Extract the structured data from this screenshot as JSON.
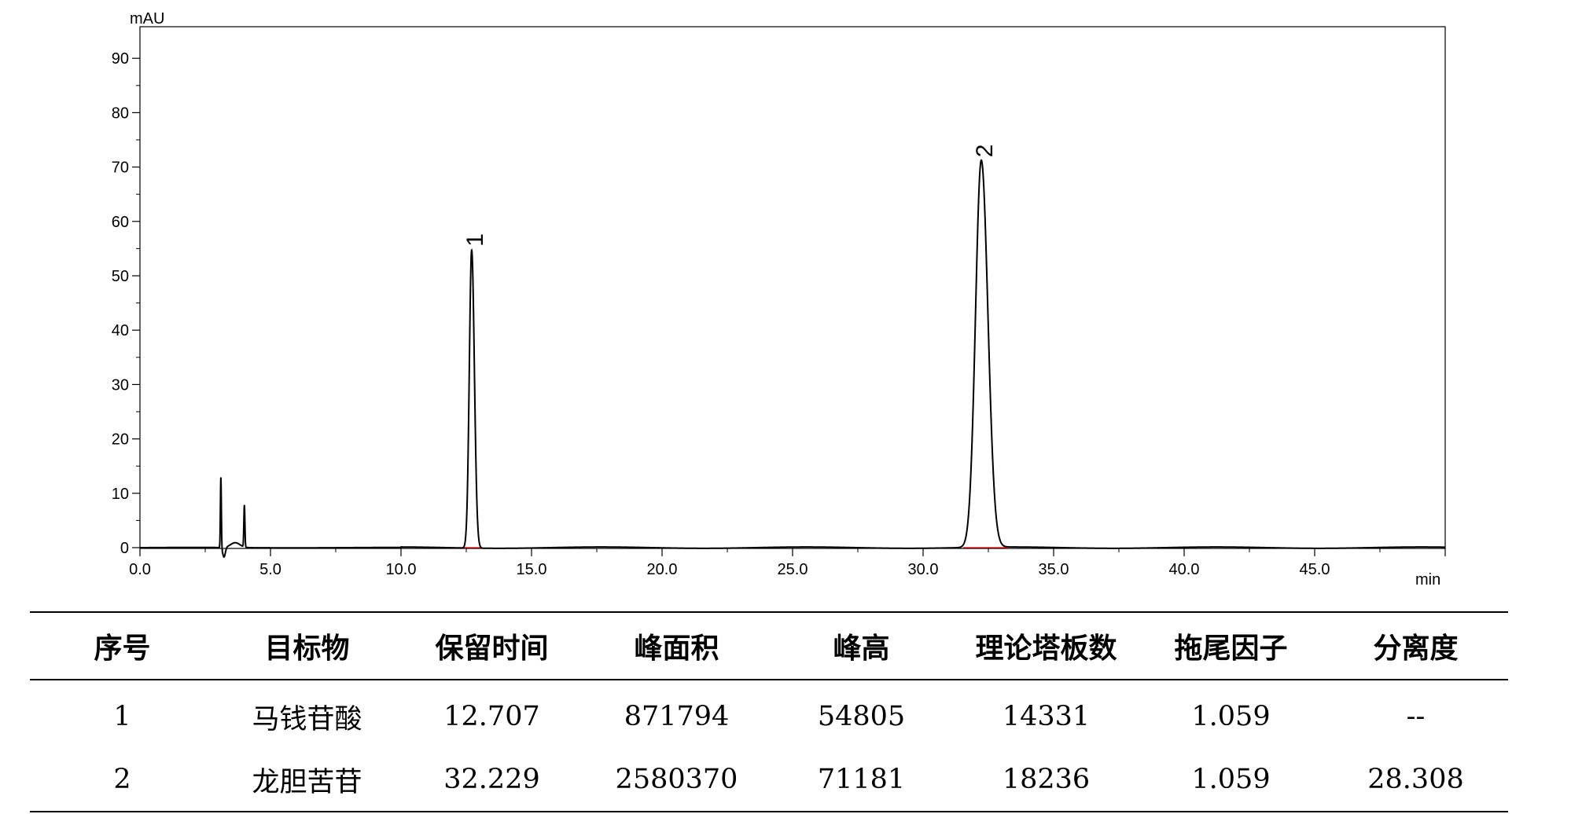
{
  "chart_data": {
    "type": "line",
    "xlabel": "min",
    "ylabel": "mAU",
    "xlim": [
      0,
      50
    ],
    "ylim": [
      -2,
      96
    ],
    "x_ticks": [
      0.0,
      5.0,
      10.0,
      15.0,
      20.0,
      25.0,
      30.0,
      35.0,
      40.0,
      45.0
    ],
    "x_tick_labels": [
      "0.0",
      "5.0",
      "10.0",
      "15.0",
      "20.0",
      "25.0",
      "30.0",
      "35.0",
      "40.0",
      "45.0"
    ],
    "y_ticks": [
      0,
      10,
      20,
      30,
      40,
      50,
      60,
      70,
      80,
      90
    ],
    "y_tick_labels": [
      "0",
      "10",
      "20",
      "30",
      "40",
      "50",
      "60",
      "70",
      "80",
      "90"
    ],
    "grid": false,
    "peaks": [
      {
        "label": "1",
        "x": 12.707,
        "height": 54.8,
        "width": 0.09
      },
      {
        "label": "2",
        "x": 32.229,
        "height": 71.2,
        "width": 0.22
      }
    ],
    "solvent_front": [
      {
        "x": 3.1,
        "height": 13.0,
        "width": 0.018
      },
      {
        "x": 4.0,
        "height": 7.7,
        "width": 0.02
      }
    ],
    "line_color": "#000000",
    "baseline_color": "#e60000"
  },
  "table": {
    "headers": [
      "序号",
      "目标物",
      "保留时间",
      "峰面积",
      "峰高",
      "理论塔板数",
      "拖尾因子",
      "分离度"
    ],
    "rows": [
      [
        "1",
        "马钱苷酸",
        "12.707",
        "871794",
        "54805",
        "14331",
        "1.059",
        "--"
      ],
      [
        "2",
        "龙胆苦苷",
        "32.229",
        "2580370",
        "71181",
        "18236",
        "1.059",
        "28.308"
      ]
    ]
  }
}
